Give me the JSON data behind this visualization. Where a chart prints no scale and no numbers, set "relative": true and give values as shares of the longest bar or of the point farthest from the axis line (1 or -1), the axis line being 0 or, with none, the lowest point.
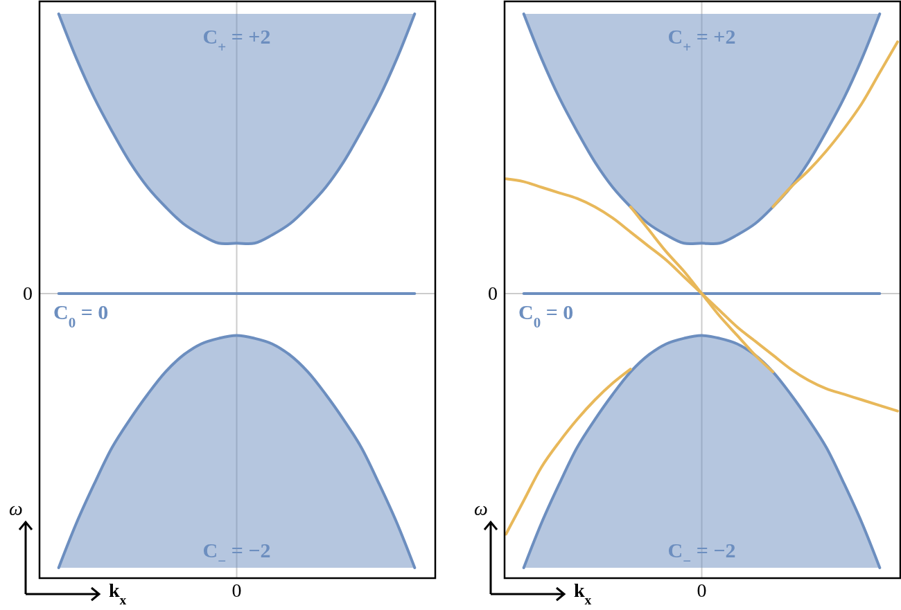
{
  "chart_data": [
    {
      "type": "line",
      "relative": true,
      "xlabel": "k$_{x}$",
      "ylabel": "ω",
      "categories": [
        null,
        null,
        null,
        null,
        null,
        null,
        null,
        null,
        null,
        null,
        null,
        null,
        null,
        null,
        null,
        null,
        null,
        null,
        null,
        null,
        null,
        null,
        null
      ],
      "series": [
        {
          "color": "#6c8ebf",
          "values": [
            null,
            1,
            0.84,
            0.7,
            0.58,
            0.47,
            0.38,
            0.31,
            0.25,
            0.21,
            0.18,
            0.18,
            0.18,
            0.21,
            0.25,
            0.31,
            0.38,
            0.47,
            0.58,
            0.7,
            0.84,
            1,
            null
          ],
          "lower": [
            null,
            1,
            0.84,
            0.7,
            0.58,
            0.47,
            0.38,
            0.31,
            0.25,
            0.21,
            0.18,
            0.18,
            0.18,
            0.21,
            0.25,
            0.31,
            0.38,
            0.47,
            0.58,
            0.7,
            0.84,
            1,
            null
          ],
          "upper": [
            null,
            1,
            1,
            1,
            1,
            1,
            1,
            1,
            1,
            1,
            1,
            1,
            1,
            1,
            1,
            1,
            1,
            1,
            1,
            1,
            1,
            1,
            null
          ]
        },
        {
          "color": "#6c8ebf",
          "values": [
            null,
            0,
            0,
            0,
            0,
            0,
            0,
            0,
            0,
            0,
            0,
            0,
            0,
            0,
            0,
            0,
            0,
            0,
            0,
            0,
            0,
            0,
            null
          ]
        },
        {
          "color": "#6c8ebf",
          "values": [
            null,
            -0.98,
            -0.82,
            -0.68,
            -0.55,
            -0.45,
            -0.36,
            -0.28,
            -0.22,
            -0.18,
            -0.16,
            -0.15,
            -0.16,
            -0.18,
            -0.22,
            -0.28,
            -0.36,
            -0.45,
            -0.55,
            -0.68,
            -0.82,
            -0.98,
            null
          ],
          "lower": [
            null,
            -0.98,
            -0.98,
            -0.98,
            -0.98,
            -0.98,
            -0.98,
            -0.98,
            -0.98,
            -0.98,
            -0.98,
            -0.98,
            -0.98,
            -0.98,
            -0.98,
            -0.98,
            -0.98,
            -0.98,
            -0.98,
            -0.98,
            -0.98,
            -0.98,
            null
          ],
          "upper": [
            null,
            -0.98,
            -0.82,
            -0.68,
            -0.55,
            -0.45,
            -0.36,
            -0.28,
            -0.22,
            -0.18,
            -0.16,
            -0.15,
            -0.16,
            -0.18,
            -0.22,
            -0.28,
            -0.36,
            -0.45,
            -0.55,
            -0.68,
            -0.82,
            -0.98,
            null
          ]
        }
      ],
      "ref_lines": [
        {
          "axis": "y",
          "value": 0,
          "label": "0",
          "color": "#cccccc"
        }
      ],
      "annotations": [
        "C$_{+}$ = +2",
        "C$_{0}$ = 0",
        "C$_{−}$ = −2",
        "0"
      ]
    },
    {
      "type": "line",
      "relative": true,
      "xlabel": "k$_{x}$",
      "ylabel": "ω",
      "categories": [
        null,
        null,
        null,
        null,
        null,
        null,
        null,
        null,
        null,
        null,
        null,
        null,
        null,
        null,
        null,
        null,
        null,
        null,
        null,
        null,
        null,
        null,
        null
      ],
      "series": [
        {
          "color": "#6c8ebf",
          "values": [
            null,
            1,
            0.84,
            0.7,
            0.58,
            0.47,
            0.38,
            0.31,
            0.25,
            0.21,
            0.18,
            0.18,
            0.18,
            0.21,
            0.25,
            0.31,
            0.38,
            0.47,
            0.58,
            0.7,
            0.84,
            1,
            null
          ],
          "lower": [
            null,
            1,
            0.84,
            0.7,
            0.58,
            0.47,
            0.38,
            0.31,
            0.25,
            0.21,
            0.18,
            0.18,
            0.18,
            0.21,
            0.25,
            0.31,
            0.38,
            0.47,
            0.58,
            0.7,
            0.84,
            1,
            null
          ],
          "upper": [
            null,
            1,
            1,
            1,
            1,
            1,
            1,
            1,
            1,
            1,
            1,
            1,
            1,
            1,
            1,
            1,
            1,
            1,
            1,
            1,
            1,
            1,
            null
          ]
        },
        {
          "color": "#6c8ebf",
          "values": [
            null,
            0,
            0,
            0,
            0,
            0,
            0,
            0,
            0,
            0,
            0,
            0,
            0,
            0,
            0,
            0,
            0,
            0,
            0,
            0,
            0,
            0,
            null
          ]
        },
        {
          "color": "#6c8ebf",
          "values": [
            null,
            -0.98,
            -0.82,
            -0.68,
            -0.55,
            -0.45,
            -0.36,
            -0.28,
            -0.22,
            -0.18,
            -0.16,
            -0.15,
            -0.16,
            -0.18,
            -0.22,
            -0.28,
            -0.36,
            -0.45,
            -0.55,
            -0.68,
            -0.82,
            -0.98,
            null
          ],
          "lower": [
            null,
            -0.98,
            -0.98,
            -0.98,
            -0.98,
            -0.98,
            -0.98,
            -0.98,
            -0.98,
            -0.98,
            -0.98,
            -0.98,
            -0.98,
            -0.98,
            -0.98,
            -0.98,
            -0.98,
            -0.98,
            -0.98,
            -0.98,
            -0.98,
            -0.98,
            null
          ],
          "upper": [
            null,
            -0.98,
            -0.82,
            -0.68,
            -0.55,
            -0.45,
            -0.36,
            -0.28,
            -0.22,
            -0.18,
            -0.16,
            -0.15,
            -0.16,
            -0.18,
            -0.22,
            -0.28,
            -0.36,
            -0.45,
            -0.55,
            -0.68,
            -0.82,
            -0.98,
            null
          ]
        },
        {
          "color": "#e8b85a",
          "values": [
            0.41,
            0.4,
            0.38,
            0.36,
            0.34,
            0.31,
            0.27,
            0.22,
            0.17,
            0.12,
            0.06,
            0,
            -0.06,
            -0.12,
            -0.17,
            -0.22,
            -0.27,
            -0.31,
            -0.34,
            -0.36,
            -0.38,
            -0.4,
            -0.42
          ]
        },
        {
          "color": "#e8b85a",
          "values": [
            null,
            null,
            null,
            null,
            null,
            null,
            null,
            0.31,
            0.23,
            0.15,
            0.08,
            0,
            -0.08,
            -0.15,
            -0.22,
            -0.28,
            null,
            null,
            null,
            null,
            null,
            null,
            null
          ]
        },
        {
          "color": "#e8b85a",
          "values": [
            null,
            null,
            null,
            null,
            null,
            null,
            null,
            null,
            null,
            null,
            null,
            null,
            null,
            null,
            null,
            0.31,
            0.38,
            0.44,
            0.51,
            0.59,
            0.68,
            0.79,
            0.9
          ]
        },
        {
          "color": "#e8b85a",
          "values": [
            -0.86,
            -0.74,
            -0.62,
            -0.53,
            -0.45,
            -0.38,
            -0.32,
            -0.27,
            null,
            null,
            null,
            null,
            null,
            null,
            null,
            null,
            null,
            null,
            null,
            null,
            null,
            null,
            null
          ]
        }
      ],
      "ref_lines": [
        {
          "axis": "y",
          "value": 0,
          "label": "0",
          "color": "#cccccc"
        }
      ],
      "annotations": [
        "C$_{+}$ = +2",
        "C$_{0}$ = 0",
        "C$_{−}$ = −2",
        "0"
      ]
    }
  ]
}
